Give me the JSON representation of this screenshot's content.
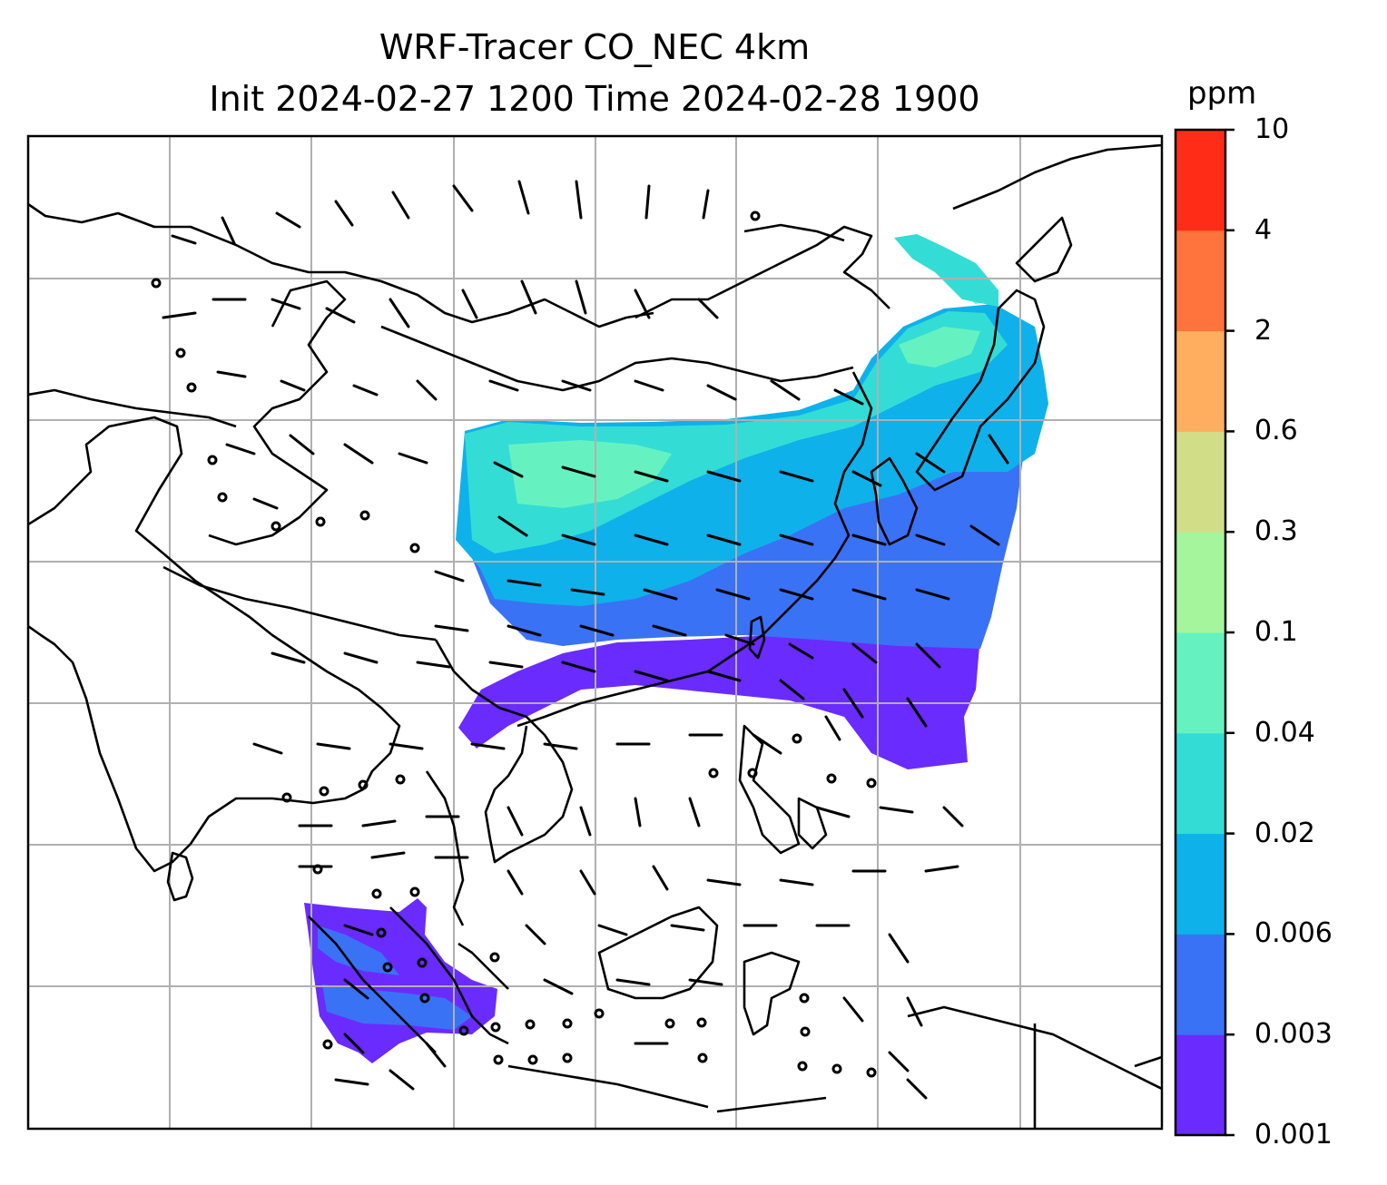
{
  "title_line1": "WRF-Tracer CO_NEC 4km",
  "title_line2": "Init 2024-02-27 1200 Time 2024-02-28 1900",
  "colorbar": {
    "unit": "ppm",
    "levels": [
      "0.001",
      "0.003",
      "0.006",
      "0.02",
      "0.04",
      "0.1",
      "0.3",
      "0.6",
      "2",
      "4",
      "10"
    ],
    "colors": [
      "#6a2bff",
      "#3a72f5",
      "#0fb1ea",
      "#33ddd6",
      "#66f2c0",
      "#a4f59c",
      "#d2de87",
      "#ffae60",
      "#ff733c",
      "#ff2d18"
    ]
  },
  "map": {
    "plume_colors": {
      "lowest": "#6a2bff",
      "low": "#3a72f5",
      "mid": "#0fb1ea",
      "midhigh": "#33ddd6",
      "high": "#66f2c0"
    },
    "gridline_color": "#b0b0b0",
    "coastline_color": "#000000"
  }
}
